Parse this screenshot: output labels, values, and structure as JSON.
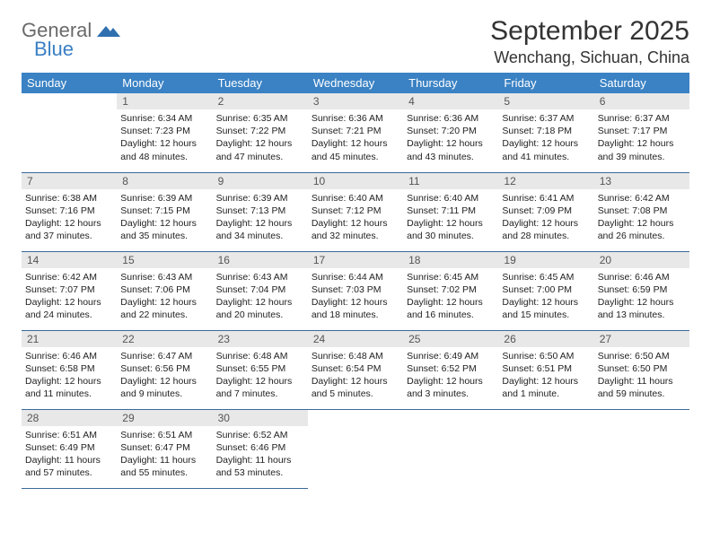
{
  "logo": {
    "word1": "General",
    "word2": "Blue"
  },
  "title": "September 2025",
  "location": "Wenchang, Sichuan, China",
  "colors": {
    "header_bg": "#3a82c4",
    "header_text": "#ffffff",
    "daynum_bg": "#e8e8e8",
    "daynum_text": "#555555",
    "row_border": "#3a6a9a",
    "logo_gray": "#6a6a6a",
    "logo_blue": "#3a7fc4"
  },
  "weekdays": [
    "Sunday",
    "Monday",
    "Tuesday",
    "Wednesday",
    "Thursday",
    "Friday",
    "Saturday"
  ],
  "start_offset": 1,
  "days": [
    {
      "n": 1,
      "sunrise": "6:34 AM",
      "sunset": "7:23 PM",
      "daylight": "12 hours and 48 minutes."
    },
    {
      "n": 2,
      "sunrise": "6:35 AM",
      "sunset": "7:22 PM",
      "daylight": "12 hours and 47 minutes."
    },
    {
      "n": 3,
      "sunrise": "6:36 AM",
      "sunset": "7:21 PM",
      "daylight": "12 hours and 45 minutes."
    },
    {
      "n": 4,
      "sunrise": "6:36 AM",
      "sunset": "7:20 PM",
      "daylight": "12 hours and 43 minutes."
    },
    {
      "n": 5,
      "sunrise": "6:37 AM",
      "sunset": "7:18 PM",
      "daylight": "12 hours and 41 minutes."
    },
    {
      "n": 6,
      "sunrise": "6:37 AM",
      "sunset": "7:17 PM",
      "daylight": "12 hours and 39 minutes."
    },
    {
      "n": 7,
      "sunrise": "6:38 AM",
      "sunset": "7:16 PM",
      "daylight": "12 hours and 37 minutes."
    },
    {
      "n": 8,
      "sunrise": "6:39 AM",
      "sunset": "7:15 PM",
      "daylight": "12 hours and 35 minutes."
    },
    {
      "n": 9,
      "sunrise": "6:39 AM",
      "sunset": "7:13 PM",
      "daylight": "12 hours and 34 minutes."
    },
    {
      "n": 10,
      "sunrise": "6:40 AM",
      "sunset": "7:12 PM",
      "daylight": "12 hours and 32 minutes."
    },
    {
      "n": 11,
      "sunrise": "6:40 AM",
      "sunset": "7:11 PM",
      "daylight": "12 hours and 30 minutes."
    },
    {
      "n": 12,
      "sunrise": "6:41 AM",
      "sunset": "7:09 PM",
      "daylight": "12 hours and 28 minutes."
    },
    {
      "n": 13,
      "sunrise": "6:42 AM",
      "sunset": "7:08 PM",
      "daylight": "12 hours and 26 minutes."
    },
    {
      "n": 14,
      "sunrise": "6:42 AM",
      "sunset": "7:07 PM",
      "daylight": "12 hours and 24 minutes."
    },
    {
      "n": 15,
      "sunrise": "6:43 AM",
      "sunset": "7:06 PM",
      "daylight": "12 hours and 22 minutes."
    },
    {
      "n": 16,
      "sunrise": "6:43 AM",
      "sunset": "7:04 PM",
      "daylight": "12 hours and 20 minutes."
    },
    {
      "n": 17,
      "sunrise": "6:44 AM",
      "sunset": "7:03 PM",
      "daylight": "12 hours and 18 minutes."
    },
    {
      "n": 18,
      "sunrise": "6:45 AM",
      "sunset": "7:02 PM",
      "daylight": "12 hours and 16 minutes."
    },
    {
      "n": 19,
      "sunrise": "6:45 AM",
      "sunset": "7:00 PM",
      "daylight": "12 hours and 15 minutes."
    },
    {
      "n": 20,
      "sunrise": "6:46 AM",
      "sunset": "6:59 PM",
      "daylight": "12 hours and 13 minutes."
    },
    {
      "n": 21,
      "sunrise": "6:46 AM",
      "sunset": "6:58 PM",
      "daylight": "12 hours and 11 minutes."
    },
    {
      "n": 22,
      "sunrise": "6:47 AM",
      "sunset": "6:56 PM",
      "daylight": "12 hours and 9 minutes."
    },
    {
      "n": 23,
      "sunrise": "6:48 AM",
      "sunset": "6:55 PM",
      "daylight": "12 hours and 7 minutes."
    },
    {
      "n": 24,
      "sunrise": "6:48 AM",
      "sunset": "6:54 PM",
      "daylight": "12 hours and 5 minutes."
    },
    {
      "n": 25,
      "sunrise": "6:49 AM",
      "sunset": "6:52 PM",
      "daylight": "12 hours and 3 minutes."
    },
    {
      "n": 26,
      "sunrise": "6:50 AM",
      "sunset": "6:51 PM",
      "daylight": "12 hours and 1 minute."
    },
    {
      "n": 27,
      "sunrise": "6:50 AM",
      "sunset": "6:50 PM",
      "daylight": "11 hours and 59 minutes."
    },
    {
      "n": 28,
      "sunrise": "6:51 AM",
      "sunset": "6:49 PM",
      "daylight": "11 hours and 57 minutes."
    },
    {
      "n": 29,
      "sunrise": "6:51 AM",
      "sunset": "6:47 PM",
      "daylight": "11 hours and 55 minutes."
    },
    {
      "n": 30,
      "sunrise": "6:52 AM",
      "sunset": "6:46 PM",
      "daylight": "11 hours and 53 minutes."
    }
  ],
  "labels": {
    "sunrise": "Sunrise:",
    "sunset": "Sunset:",
    "daylight": "Daylight:"
  }
}
